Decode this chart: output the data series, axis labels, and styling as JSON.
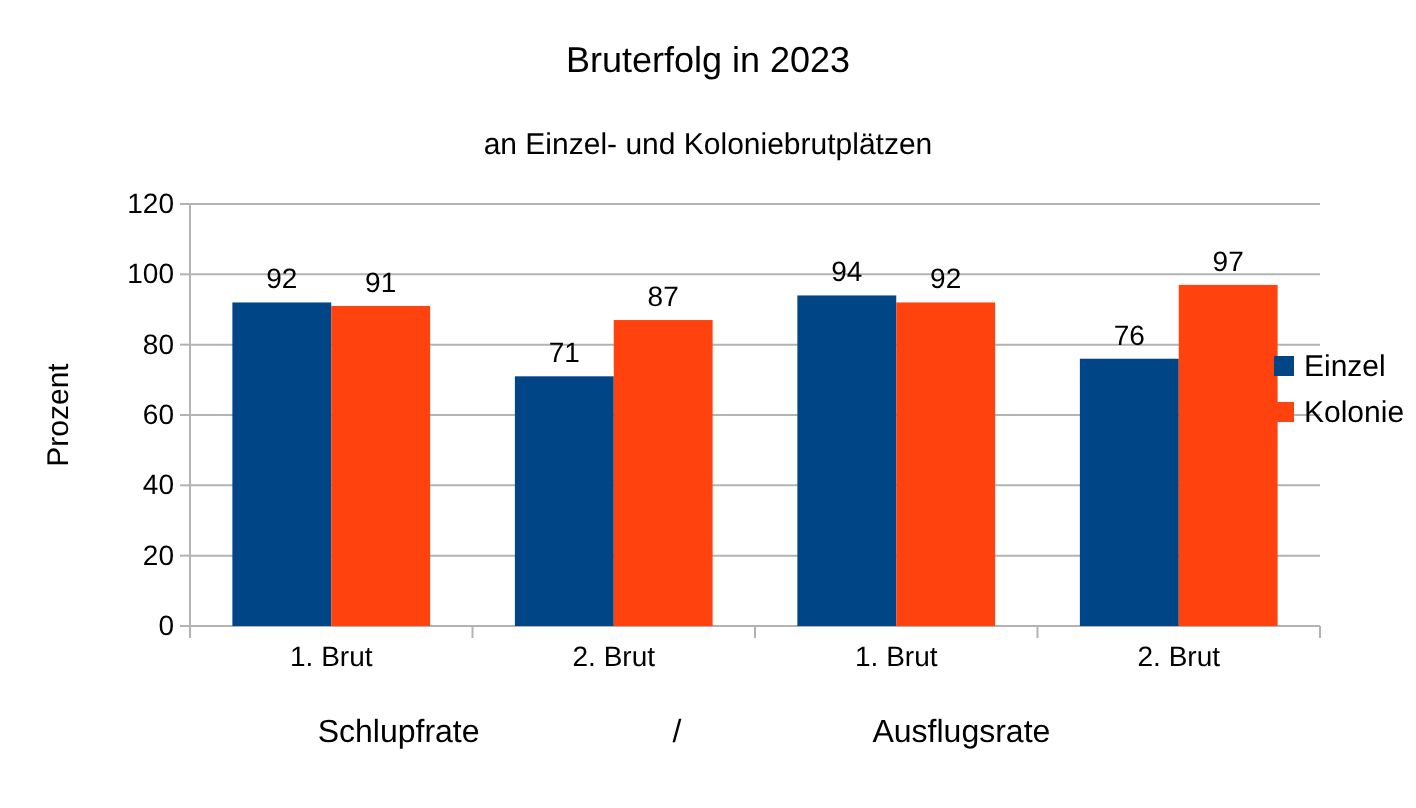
{
  "chart_data": {
    "type": "bar",
    "title": "Bruterfolg in 2023",
    "subtitle": "an Einzel- und Koloniebrutplätzen",
    "xlabel": "Schlupfrate / Ausflugsrate",
    "ylabel": "Prozent",
    "categories": [
      "1. Brut",
      "2. Brut",
      "1. Brut",
      "2. Brut"
    ],
    "series": [
      {
        "name": "Einzel",
        "color": "#004586",
        "values": [
          92,
          71,
          94,
          76
        ]
      },
      {
        "name": "Kolonie",
        "color": "#ff420e",
        "values": [
          91,
          87,
          92,
          97
        ]
      }
    ],
    "ylim": [
      0,
      120
    ],
    "yticks": [
      0,
      20,
      40,
      60,
      80,
      100,
      120
    ],
    "grid": "y",
    "legend": "right",
    "data_labels": true
  }
}
